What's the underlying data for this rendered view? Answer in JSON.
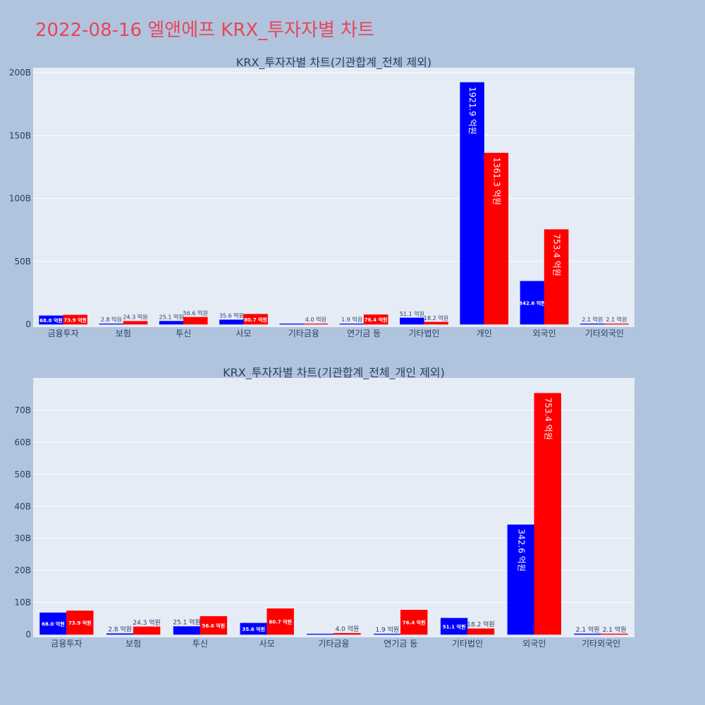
{
  "page": {
    "title": "2022-08-16 엘앤에프 KRX_투자자별 차트",
    "title_color": "#e8455a",
    "background": "#b0c4de",
    "plot_background": "#e5ecf6"
  },
  "chart_data": [
    {
      "type": "bar",
      "title": "KRX_투자자별 차트(기관합계_전체 제외)",
      "categories": [
        "금융투자",
        "보험",
        "투신",
        "사모",
        "기타금융",
        "연기금 등",
        "기타법인",
        "개인",
        "외국인",
        "기타외국인"
      ],
      "series": [
        {
          "color": "#0000ff",
          "values": [
            6.8,
            0.28,
            2.51,
            3.56,
            0.0,
            0.19,
            5.11,
            192.19,
            34.26,
            0.21
          ],
          "labels": [
            "68.0 억원",
            "2.8 억원",
            "25.1 억원",
            "35.6 억원",
            "",
            "1.9 억원",
            "51.1 억원",
            "1921.9 억원",
            "342.6 억원",
            "2.1 억원"
          ]
        },
        {
          "color": "#ff0000",
          "values": [
            7.39,
            2.43,
            5.66,
            8.07,
            0.4,
            7.64,
            1.82,
            136.13,
            75.34,
            0.21
          ],
          "labels": [
            "73.9 억원",
            "24.3 억원",
            "56.6 억원",
            "80.7 억원",
            "4.0 억원",
            "76.4 억원",
            "18.2 억원",
            "1361.3 억원",
            "753.4 억원",
            "2.1 억원"
          ]
        }
      ],
      "yunit": "B",
      "ylim": [
        0,
        203
      ],
      "yticks": [
        0,
        50,
        100,
        150,
        200
      ],
      "ytick_labels": [
        "0",
        "50B",
        "100B",
        "150B",
        "200B"
      ],
      "grid": true
    },
    {
      "type": "bar",
      "title": "KRX_투자자별 차트(기관합계_전체_개인 제외)",
      "categories": [
        "금융투자",
        "보험",
        "투신",
        "사모",
        "기타금융",
        "연기금 등",
        "기타법인",
        "외국인",
        "기타외국인"
      ],
      "series": [
        {
          "color": "#0000ff",
          "values": [
            6.8,
            0.28,
            2.51,
            3.56,
            0.0,
            0.19,
            5.11,
            34.26,
            0.21
          ],
          "labels": [
            "68.0 억원",
            "2.8 억원",
            "25.1 억원",
            "35.6 억원",
            "",
            "1.9 억원",
            "51.1 억원",
            "342.6 억원",
            "2.1 억원"
          ]
        },
        {
          "color": "#ff0000",
          "values": [
            7.39,
            2.43,
            5.66,
            8.07,
            0.4,
            7.64,
            1.82,
            75.34,
            0.21
          ],
          "labels": [
            "73.9 억원",
            "24.3 억원",
            "56.6 억원",
            "80.7 억원",
            "4.0 억원",
            "76.4 억원",
            "18.2 억원",
            "753.4 억원",
            "2.1 억원"
          ]
        }
      ],
      "yunit": "B",
      "ylim": [
        0,
        79.2
      ],
      "yticks": [
        0,
        10,
        20,
        30,
        40,
        50,
        60,
        70
      ],
      "ytick_labels": [
        "0",
        "10B",
        "20B",
        "30B",
        "40B",
        "50B",
        "60B",
        "70B"
      ],
      "grid": true
    }
  ]
}
